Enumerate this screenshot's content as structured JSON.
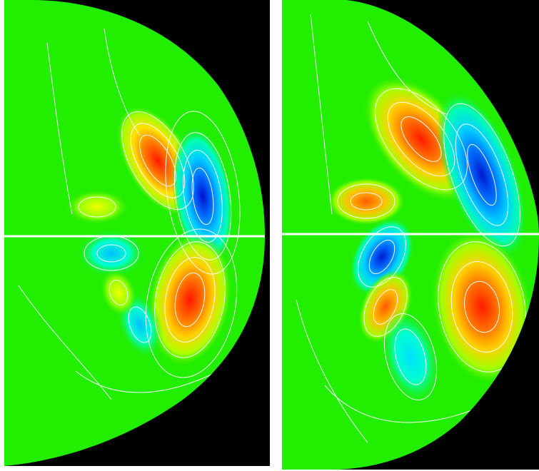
{
  "figure": {
    "panels": [
      {
        "id": "left",
        "description_kind": "contour-plot",
        "extrema": [
          {
            "kind": "max",
            "color": "#ff2a00"
          },
          {
            "kind": "min",
            "color": "#0020e0"
          },
          {
            "kind": "max",
            "color": "#ff2a00"
          },
          {
            "kind": "min",
            "color": "#00d0ff"
          },
          {
            "kind": "max",
            "color": "#e8ff00"
          },
          {
            "kind": "max",
            "color": "#ffe000"
          },
          {
            "kind": "min",
            "color": "#00ffe0"
          }
        ]
      },
      {
        "id": "right",
        "description_kind": "contour-plot",
        "extrema": [
          {
            "kind": "max",
            "color": "#ff5000"
          },
          {
            "kind": "min",
            "color": "#0030e0"
          },
          {
            "kind": "max",
            "color": "#ff5a00"
          },
          {
            "kind": "min",
            "color": "#0040ff"
          },
          {
            "kind": "max",
            "color": "#ff7000"
          },
          {
            "kind": "max",
            "color": "#ff1a00"
          },
          {
            "kind": "min",
            "color": "#00ffd0"
          }
        ]
      }
    ],
    "colors": {
      "background": "#000000",
      "field": "#22ee00",
      "contour": "#ffffff",
      "midplane": "#ffffff"
    }
  }
}
